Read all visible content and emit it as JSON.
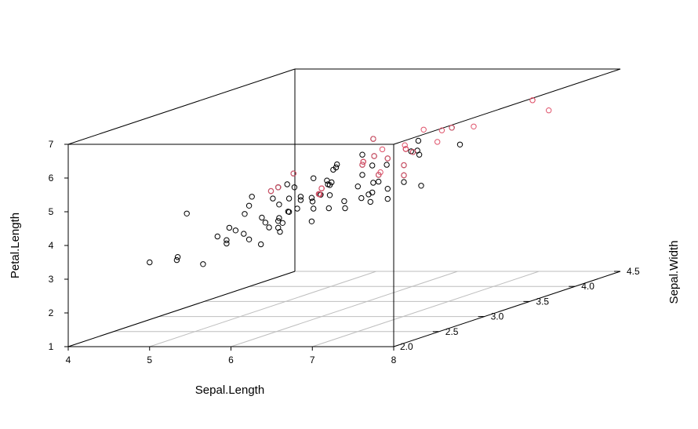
{
  "chart_data": {
    "type": "scatter",
    "projection": "3d",
    "title": "",
    "xlabel": "Sepal.Length",
    "ylabel": "Sepal.Width",
    "zlabel": "Petal.Length",
    "xlim": [
      4,
      8
    ],
    "ylim": [
      2.0,
      4.5
    ],
    "zlim": [
      1,
      7
    ],
    "x_ticks": [
      "4",
      "5",
      "6",
      "7",
      "8"
    ],
    "y_ticks": [
      "2.0",
      "2.5",
      "3.0",
      "3.5",
      "4.0",
      "4.5"
    ],
    "z_ticks": [
      "1",
      "2",
      "3",
      "4",
      "5",
      "6",
      "7"
    ],
    "grid": true,
    "series": [
      {
        "color": "#000000",
        "points": [
          [
            7.0,
            3.2,
            4.7
          ],
          [
            6.4,
            3.2,
            4.5
          ],
          [
            6.9,
            3.1,
            4.9
          ],
          [
            5.5,
            2.3,
            4.0
          ],
          [
            6.5,
            2.8,
            4.6
          ],
          [
            5.7,
            2.8,
            4.5
          ],
          [
            6.3,
            3.3,
            4.7
          ],
          [
            4.9,
            2.4,
            3.3
          ],
          [
            6.6,
            2.9,
            4.6
          ],
          [
            5.2,
            2.7,
            3.9
          ],
          [
            5.0,
            2.0,
            3.5
          ],
          [
            5.9,
            3.0,
            4.2
          ],
          [
            6.0,
            2.2,
            4.0
          ],
          [
            6.1,
            2.9,
            4.7
          ],
          [
            5.6,
            2.9,
            3.6
          ],
          [
            6.7,
            3.1,
            4.4
          ],
          [
            5.6,
            3.0,
            4.5
          ],
          [
            5.8,
            2.7,
            4.1
          ],
          [
            6.2,
            2.2,
            4.5
          ],
          [
            5.6,
            2.5,
            3.9
          ],
          [
            5.9,
            3.2,
            4.8
          ],
          [
            6.1,
            2.8,
            4.0
          ],
          [
            6.3,
            2.5,
            4.9
          ],
          [
            6.1,
            2.8,
            4.7
          ],
          [
            6.4,
            2.9,
            4.3
          ],
          [
            6.6,
            3.0,
            4.4
          ],
          [
            6.8,
            2.8,
            4.8
          ],
          [
            6.7,
            3.0,
            5.0
          ],
          [
            6.0,
            2.9,
            4.5
          ],
          [
            5.7,
            2.6,
            3.5
          ],
          [
            5.5,
            2.4,
            3.8
          ],
          [
            5.5,
            2.4,
            3.7
          ],
          [
            5.8,
            2.7,
            3.9
          ],
          [
            6.0,
            2.7,
            5.1
          ],
          [
            5.4,
            3.0,
            4.5
          ],
          [
            6.0,
            3.4,
            4.5
          ],
          [
            6.7,
            3.1,
            4.7
          ],
          [
            6.3,
            2.3,
            4.4
          ],
          [
            5.6,
            3.0,
            4.1
          ],
          [
            5.5,
            2.5,
            4.0
          ],
          [
            5.5,
            2.6,
            4.4
          ],
          [
            6.1,
            3.0,
            4.6
          ],
          [
            5.8,
            2.6,
            4.0
          ],
          [
            5.0,
            2.3,
            3.3
          ],
          [
            5.6,
            2.7,
            4.2
          ],
          [
            5.7,
            3.0,
            4.2
          ],
          [
            5.7,
            2.9,
            4.2
          ],
          [
            6.2,
            2.9,
            4.3
          ],
          [
            5.1,
            2.5,
            3.0
          ],
          [
            5.7,
            2.8,
            4.1
          ],
          [
            6.3,
            3.3,
            6.0
          ],
          [
            5.8,
            2.7,
            5.1
          ],
          [
            7.1,
            3.0,
            5.9
          ],
          [
            6.3,
            2.9,
            5.6
          ],
          [
            6.5,
            3.0,
            5.8
          ],
          [
            7.6,
            3.0,
            6.6
          ],
          [
            4.9,
            2.5,
            4.5
          ],
          [
            7.3,
            2.9,
            6.3
          ],
          [
            6.7,
            2.5,
            5.8
          ],
          [
            6.4,
            2.7,
            5.3
          ],
          [
            6.8,
            3.0,
            5.5
          ],
          [
            5.7,
            2.5,
            5.0
          ],
          [
            5.8,
            2.8,
            5.1
          ],
          [
            6.4,
            3.2,
            5.3
          ],
          [
            6.5,
            3.0,
            5.5
          ],
          [
            6.0,
            2.2,
            5.0
          ],
          [
            6.9,
            3.2,
            5.7
          ],
          [
            5.6,
            2.8,
            4.9
          ],
          [
            6.3,
            2.7,
            4.9
          ],
          [
            6.7,
            3.3,
            5.7
          ],
          [
            6.2,
            2.8,
            4.8
          ],
          [
            6.1,
            3.0,
            4.9
          ],
          [
            6.4,
            2.8,
            5.6
          ],
          [
            7.2,
            3.0,
            5.8
          ],
          [
            7.4,
            2.8,
            6.1
          ],
          [
            6.3,
            2.8,
            5.1
          ],
          [
            6.1,
            2.6,
            5.6
          ],
          [
            7.7,
            3.0,
            6.1
          ],
          [
            6.4,
            3.1,
            5.5
          ],
          [
            6.0,
            3.0,
            4.8
          ],
          [
            6.9,
            3.1,
            5.4
          ],
          [
            6.7,
            3.1,
            5.6
          ],
          [
            6.9,
            3.1,
            5.1
          ],
          [
            5.8,
            2.7,
            5.1
          ],
          [
            6.7,
            3.0,
            5.2
          ],
          [
            6.3,
            2.5,
            5.0
          ],
          [
            6.5,
            3.0,
            5.2
          ],
          [
            6.2,
            3.4,
            5.4
          ],
          [
            5.9,
            3.0,
            5.1
          ]
        ]
      },
      {
        "color": "#DF536B",
        "points": [
          [
            6.5,
            3.2,
            5.1
          ],
          [
            7.7,
            3.8,
            6.7
          ],
          [
            7.7,
            2.6,
            6.9
          ],
          [
            6.9,
            3.2,
            5.7
          ],
          [
            5.6,
            2.8,
            4.9
          ],
          [
            7.7,
            2.8,
            6.7
          ],
          [
            6.3,
            2.7,
            4.9
          ],
          [
            6.7,
            3.3,
            5.7
          ],
          [
            7.2,
            3.2,
            6.0
          ],
          [
            6.2,
            2.8,
            4.8
          ],
          [
            7.2,
            3.6,
            6.1
          ],
          [
            6.4,
            3.1,
            5.5
          ],
          [
            6.0,
            3.0,
            4.8
          ],
          [
            6.8,
            3.2,
            5.9
          ],
          [
            6.7,
            3.3,
            5.7
          ],
          [
            6.7,
            3.0,
            5.2
          ],
          [
            6.2,
            3.4,
            5.4
          ],
          [
            6.5,
            3.0,
            5.5
          ],
          [
            7.7,
            3.8,
            6.7
          ],
          [
            6.9,
            3.1,
            5.1
          ],
          [
            5.8,
            2.7,
            5.1
          ],
          [
            6.3,
            3.4,
            5.6
          ],
          [
            6.4,
            3.1,
            5.5
          ],
          [
            6.0,
            3.0,
            4.8
          ],
          [
            6.9,
            3.1,
            5.4
          ],
          [
            6.7,
            3.1,
            5.6
          ],
          [
            7.9,
            3.8,
            6.4
          ],
          [
            6.1,
            2.6,
            5.6
          ],
          [
            6.3,
            3.3,
            6.0
          ],
          [
            7.6,
            3.0,
            6.6
          ]
        ]
      }
    ]
  }
}
